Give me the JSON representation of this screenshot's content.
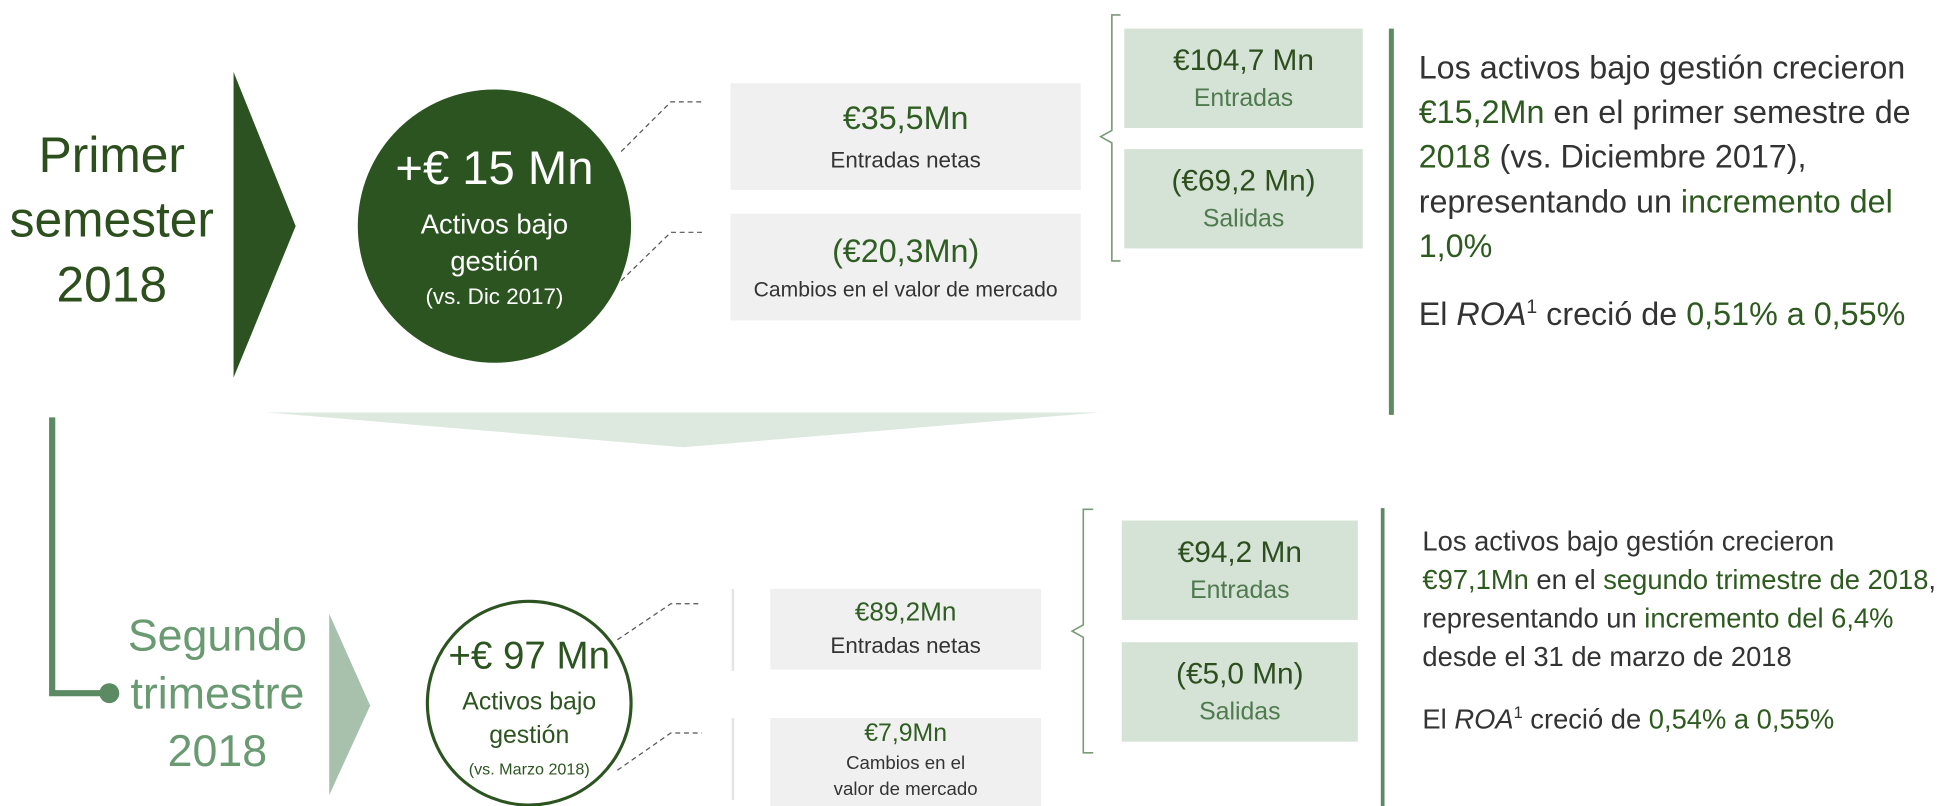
{
  "sections": [
    {
      "period": [
        "Primer",
        "semester",
        "2018"
      ],
      "circle": {
        "value": "+€ 15 Mn",
        "label": [
          "Activos bajo",
          "gestión"
        ],
        "note": "(vs. Dic 2017)"
      },
      "boxes": [
        {
          "value": "€35,5Mn",
          "label": [
            "Entradas netas"
          ]
        },
        {
          "value": "(€20,3Mn)",
          "label": [
            "Cambios en el valor de mercado"
          ]
        }
      ],
      "flows": [
        {
          "value": "€104,7 Mn",
          "label": "Entradas"
        },
        {
          "value": "(€69,2 Mn)",
          "label": "Salidas"
        }
      ],
      "summary": [
        [
          {
            "text": "Los activos bajo gestión crecieron "
          },
          {
            "text": "€15,2Mn",
            "style": "hl"
          },
          {
            "text": " en el primer semestre de "
          },
          {
            "text": "2018",
            "style": "hl"
          },
          {
            "text": " (vs. Diciembre 2017), representando un "
          },
          {
            "text": "incremento del 1,0%",
            "style": "hl"
          }
        ],
        [
          {
            "text": "El "
          },
          {
            "text": "ROA",
            "style": "italic"
          },
          {
            "text": "1",
            "style": "sup"
          },
          {
            "text": " creció de "
          },
          {
            "text": "0,51% a 0,55%",
            "style": "hl"
          }
        ]
      ]
    },
    {
      "period": [
        "Segundo",
        "trimestre",
        "2018"
      ],
      "circle": {
        "value": "+€ 97 Mn",
        "label": [
          "Activos bajo",
          "gestión"
        ],
        "note": "(vs. Marzo 2018)"
      },
      "boxes": [
        {
          "value": "€89,2Mn",
          "label": [
            "Entradas netas"
          ]
        },
        {
          "value": "€7,9Mn",
          "label": [
            "Cambios en el",
            "valor de mercado"
          ]
        }
      ],
      "flows": [
        {
          "value": "€94,2 Mn",
          "label": "Entradas"
        },
        {
          "value": "(€5,0 Mn)",
          "label": "Salidas"
        }
      ],
      "summary": [
        [
          {
            "text": "Los activos bajo gestión crecieron "
          },
          {
            "text": "€97,1Mn",
            "style": "hl"
          },
          {
            "text": " en el "
          },
          {
            "text": "segundo trimestre de 2018",
            "style": "hl"
          },
          {
            "text": ", representando un "
          },
          {
            "text": "incremento del 6,4%",
            "style": "hl"
          },
          {
            "text": " desde el 31 de marzo de 2018"
          }
        ],
        [
          {
            "text": "El "
          },
          {
            "text": "ROA",
            "style": "italic"
          },
          {
            "text": "1",
            "style": "sup"
          },
          {
            "text": " creció de "
          },
          {
            "text": "0,54% a 0,55%",
            "style": "hl"
          }
        ]
      ]
    }
  ]
}
